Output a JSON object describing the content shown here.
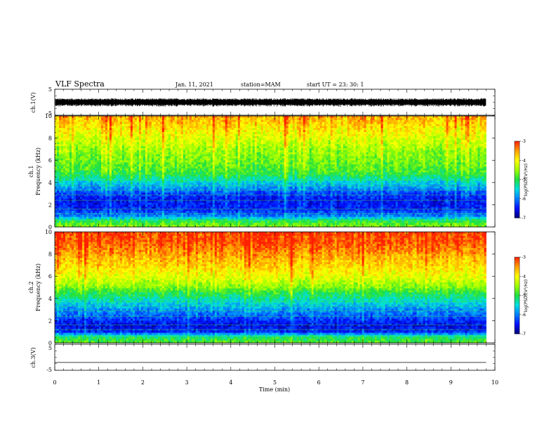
{
  "header": {
    "title": "VLF Spectra",
    "date": "Jan. 11, 2021",
    "station": "station=MAM",
    "start_ut": "start  UT  =   23: 30: 1"
  },
  "colors": {
    "spectrum_scale": [
      "#00007a",
      "#0010ff",
      "#0080ff",
      "#00e0e0",
      "#20e040",
      "#a0ff00",
      "#ffff00",
      "#ffa000",
      "#ff2000"
    ],
    "waveform": "#000000"
  },
  "chart_data": [
    {
      "type": "line",
      "name": "ch1_waveform",
      "ylabel": "ch.1(V)",
      "ylim": [
        -5,
        5
      ],
      "y_ticks": [
        "5",
        "-5"
      ],
      "x_range_min": [
        0,
        10
      ],
      "data_extent_min": [
        0,
        9.8
      ],
      "amplitude_envelope_v": [
        -1.5,
        1.5
      ],
      "description_values": {
        "typical_range_v": [
          -1.0,
          1.0
        ]
      }
    },
    {
      "type": "heatmap",
      "name": "ch1_spectrogram",
      "ylabel_line1": "ch.1",
      "ylabel_line2": "Frequency (kHz)",
      "x_range_min": [
        0,
        10
      ],
      "ylim_khz": [
        0,
        10
      ],
      "y_ticks": [
        "0",
        "2",
        "4",
        "6",
        "8",
        "10"
      ],
      "log_psd_by_frequency_khz": [
        {
          "f": 0.0,
          "v": -4.6
        },
        {
          "f": 0.5,
          "v": -5.0
        },
        {
          "f": 1.0,
          "v": -6.0
        },
        {
          "f": 1.5,
          "v": -6.4
        },
        {
          "f": 2.0,
          "v": -6.5
        },
        {
          "f": 2.5,
          "v": -6.5
        },
        {
          "f": 3.0,
          "v": -6.3
        },
        {
          "f": 3.5,
          "v": -5.9
        },
        {
          "f": 4.0,
          "v": -5.6
        },
        {
          "f": 4.5,
          "v": -5.2
        },
        {
          "f": 5.0,
          "v": -4.9
        },
        {
          "f": 6.0,
          "v": -4.7
        },
        {
          "f": 7.0,
          "v": -4.5
        },
        {
          "f": 8.0,
          "v": -4.2
        },
        {
          "f": 9.0,
          "v": -3.9
        },
        {
          "f": 10.0,
          "v": -3.6
        }
      ]
    },
    {
      "type": "heatmap",
      "name": "ch2_spectrogram",
      "ylabel_line1": "ch.2",
      "ylabel_line2": "Frequency (kHz)",
      "x_range_min": [
        0,
        10
      ],
      "ylim_khz": [
        0,
        10
      ],
      "y_ticks": [
        "0",
        "2",
        "4",
        "6",
        "8",
        "10"
      ],
      "log_psd_by_frequency_khz": [
        {
          "f": 0.0,
          "v": -4.8
        },
        {
          "f": 0.5,
          "v": -5.1
        },
        {
          "f": 1.0,
          "v": -6.4
        },
        {
          "f": 1.5,
          "v": -6.6
        },
        {
          "f": 2.0,
          "v": -6.4
        },
        {
          "f": 2.5,
          "v": -6.1
        },
        {
          "f": 3.0,
          "v": -5.9
        },
        {
          "f": 3.5,
          "v": -5.6
        },
        {
          "f": 4.0,
          "v": -5.3
        },
        {
          "f": 4.5,
          "v": -5.0
        },
        {
          "f": 5.0,
          "v": -4.6
        },
        {
          "f": 6.0,
          "v": -4.1
        },
        {
          "f": 7.0,
          "v": -3.8
        },
        {
          "f": 8.0,
          "v": -3.5
        },
        {
          "f": 9.0,
          "v": -3.2
        },
        {
          "f": 10.0,
          "v": -3.1
        }
      ]
    },
    {
      "type": "line",
      "name": "ch3_waveform",
      "ylabel": "ch.3(V)",
      "ylim": [
        -5,
        5
      ],
      "y_ticks": [
        "5",
        "-5"
      ],
      "x_range_min": [
        0,
        10
      ],
      "data_extent_min": [
        0,
        9.8
      ],
      "constant_value_v": -2.0
    }
  ],
  "colorbar": {
    "label": "log(PSD)(V²/Hz)",
    "range": [
      -7,
      -3
    ],
    "ticks": [
      "-3",
      "-4",
      "-5",
      "-6",
      "-7"
    ]
  },
  "x_axis": {
    "label": "Time  (min)",
    "ticks": [
      "0",
      "1",
      "2",
      "3",
      "4",
      "5",
      "6",
      "7",
      "8",
      "9",
      "10"
    ]
  }
}
